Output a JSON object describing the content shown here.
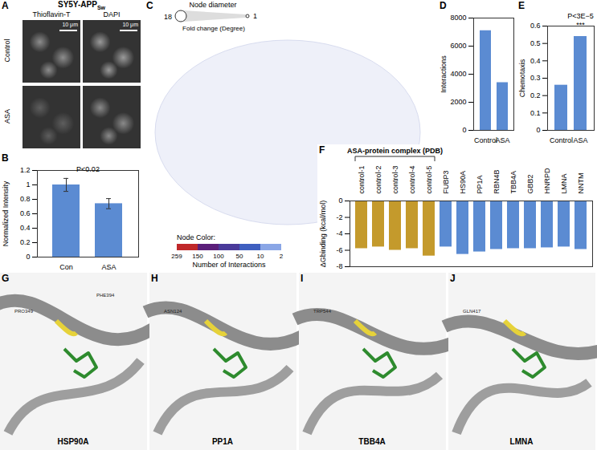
{
  "chart_data": [
    {
      "panel": "B",
      "type": "bar",
      "categories": [
        "Con",
        "ASA"
      ],
      "values": [
        1.0,
        0.74
      ],
      "errors": [
        0.09,
        0.07
      ],
      "color": "#5b8bd2",
      "ylabel": "Normalized Intensity",
      "ylim": [
        0,
        1.2
      ],
      "yticks": [
        0,
        0.2,
        0.4,
        0.6,
        0.8,
        1,
        1.2
      ],
      "annotations": [
        {
          "text": "P<0.02"
        }
      ]
    },
    {
      "panel": "D",
      "type": "bar",
      "categories": [
        "Control",
        "ASA"
      ],
      "values": [
        7100,
        3400
      ],
      "color": "#5b8bd2",
      "ylabel": "Interactions",
      "ylim": [
        0,
        8000
      ],
      "yticks": [
        0,
        2000,
        4000,
        6000,
        8000
      ]
    },
    {
      "panel": "E",
      "type": "bar",
      "categories": [
        "Control",
        "ASA"
      ],
      "values": [
        0.26,
        0.54
      ],
      "color": "#5b8bd2",
      "ylabel": "Chemotaxis",
      "ylim": [
        0,
        0.6
      ],
      "yticks": [
        0,
        0.1,
        0.2,
        0.3,
        0.4,
        0.5,
        0.6
      ],
      "annotations": [
        {
          "text": "P<3E−5",
          "category": "ASA"
        },
        {
          "text": "***",
          "category": "ASA"
        }
      ]
    },
    {
      "panel": "F",
      "type": "bar",
      "categories": [
        "control-1",
        "control-2",
        "control-3",
        "control-4",
        "control-5",
        "FUBP3",
        "HS90A",
        "PP1A",
        "RBN4B",
        "TBB4A",
        "GBB2",
        "HNRPD",
        "LMNA",
        "NNTM"
      ],
      "values": [
        -5.8,
        -5.6,
        -6.0,
        -5.8,
        -6.7,
        -5.6,
        -6.5,
        -6.2,
        -5.9,
        -5.8,
        -5.8,
        -5.7,
        -5.6,
        -5.9
      ],
      "colors": [
        "#c49a2c",
        "#c49a2c",
        "#c49a2c",
        "#c49a2c",
        "#c49a2c",
        "#5b8bd2",
        "#5b8bd2",
        "#5b8bd2",
        "#5b8bd2",
        "#5b8bd2",
        "#5b8bd2",
        "#5b8bd2",
        "#5b8bd2",
        "#5b8bd2"
      ],
      "ylabel": "ΔGbinding (kcal/mol)",
      "ylim": [
        -8,
        0
      ],
      "yticks": [
        -8,
        -6,
        -4,
        -2,
        0
      ],
      "annotations": [
        {
          "text": "ASA-protein complex (PDB)",
          "categories": [
            "control-1",
            "control-5"
          ]
        }
      ]
    }
  ],
  "figure": {
    "images": {
      "panel": "A",
      "title": "SY5Y-APP",
      "title_subscript": "Sw",
      "columns": [
        "Thioflavin-T",
        "DAPI"
      ],
      "rows": [
        "Control",
        "ASA"
      ],
      "scale_bar": "10 μm"
    },
    "network": {
      "panel": "C",
      "size_legend": {
        "title": "Node diameter",
        "label": "Fold change (Degree)",
        "ticks": [
          18,
          1
        ]
      },
      "color_legend": {
        "title": "Node Color:",
        "label": "Number of Interactions",
        "ticks": [
          259,
          150,
          100,
          50,
          10,
          2
        ],
        "colors": [
          "#c0282a",
          "#5b1f7a",
          "#4a3a9a",
          "#3f5fc0",
          "#8aa6e6"
        ]
      }
    },
    "structures": [
      {
        "panel": "G",
        "label": "HSP90A",
        "residues": [
          "PRO349",
          "PHE394"
        ]
      },
      {
        "panel": "H",
        "label": "PP1A",
        "residues": [
          "ASN124"
        ]
      },
      {
        "panel": "I",
        "label": "TBB4A",
        "residues": [
          "TRP544"
        ]
      },
      {
        "panel": "J",
        "label": "LMNA",
        "residues": [
          "GLN417"
        ]
      }
    ]
  }
}
